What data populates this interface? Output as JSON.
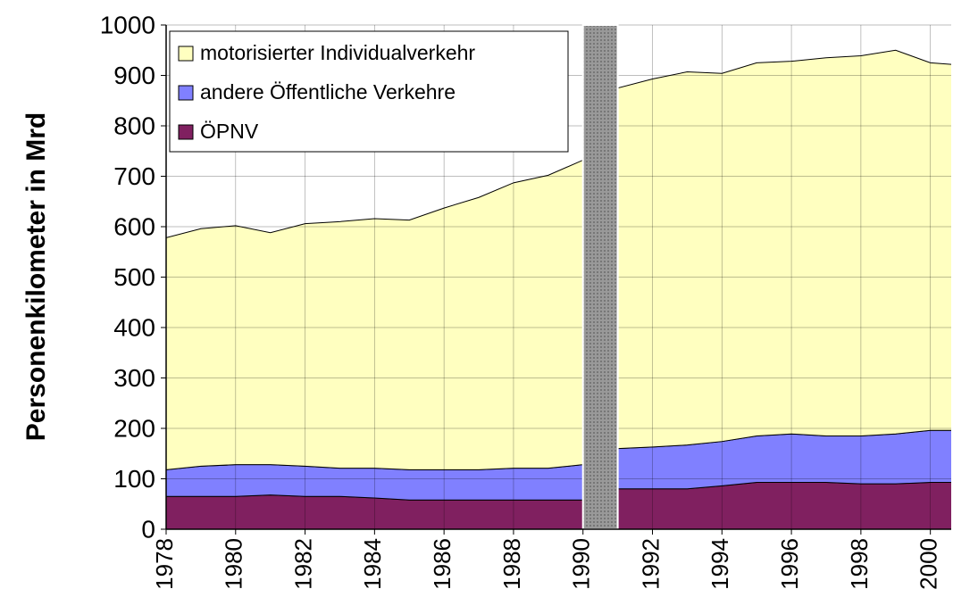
{
  "chart_data": {
    "type": "stacked-area",
    "ylabel": "Personenkilometer in Mrd",
    "x": [
      1978,
      1979,
      1980,
      1981,
      1982,
      1983,
      1984,
      1985,
      1986,
      1987,
      1988,
      1989,
      1990,
      1991,
      1992,
      1993,
      1994,
      1995,
      1996,
      1997,
      1998,
      1999,
      2000,
      2001
    ],
    "series": [
      {
        "name": "ÖPNV",
        "color": "#802060",
        "values": [
          65,
          65,
          65,
          68,
          65,
          65,
          62,
          58,
          58,
          58,
          58,
          58,
          58,
          80,
          80,
          80,
          86,
          93,
          93,
          93,
          90,
          90,
          93,
          93
        ]
      },
      {
        "name": "andere Öffentliche Verkehre",
        "color": "#8080ff",
        "values": [
          53,
          60,
          63,
          60,
          60,
          56,
          59,
          60,
          60,
          60,
          63,
          63,
          70,
          80,
          83,
          87,
          88,
          92,
          96,
          92,
          95,
          99,
          103,
          103
        ]
      },
      {
        "name": "motorisierter Individualverkehr",
        "color": "#ffffc0",
        "values": [
          460,
          471,
          474,
          460,
          481,
          489,
          495,
          495,
          519,
          540,
          566,
          581,
          604,
          715,
          730,
          740,
          730,
          740,
          739,
          750,
          754,
          761,
          729,
          724
        ]
      }
    ],
    "xlim": [
      1978,
      2000.6
    ],
    "xticks": [
      1978,
      1980,
      1982,
      1984,
      1986,
      1988,
      1990,
      1992,
      1994,
      1996,
      1998,
      2000
    ],
    "ylim": [
      0,
      1000
    ],
    "yticks": [
      0,
      100,
      200,
      300,
      400,
      500,
      600,
      700,
      800,
      900,
      1000
    ],
    "grid": true,
    "break": [
      1990,
      1991
    ],
    "legend": "top-left"
  }
}
